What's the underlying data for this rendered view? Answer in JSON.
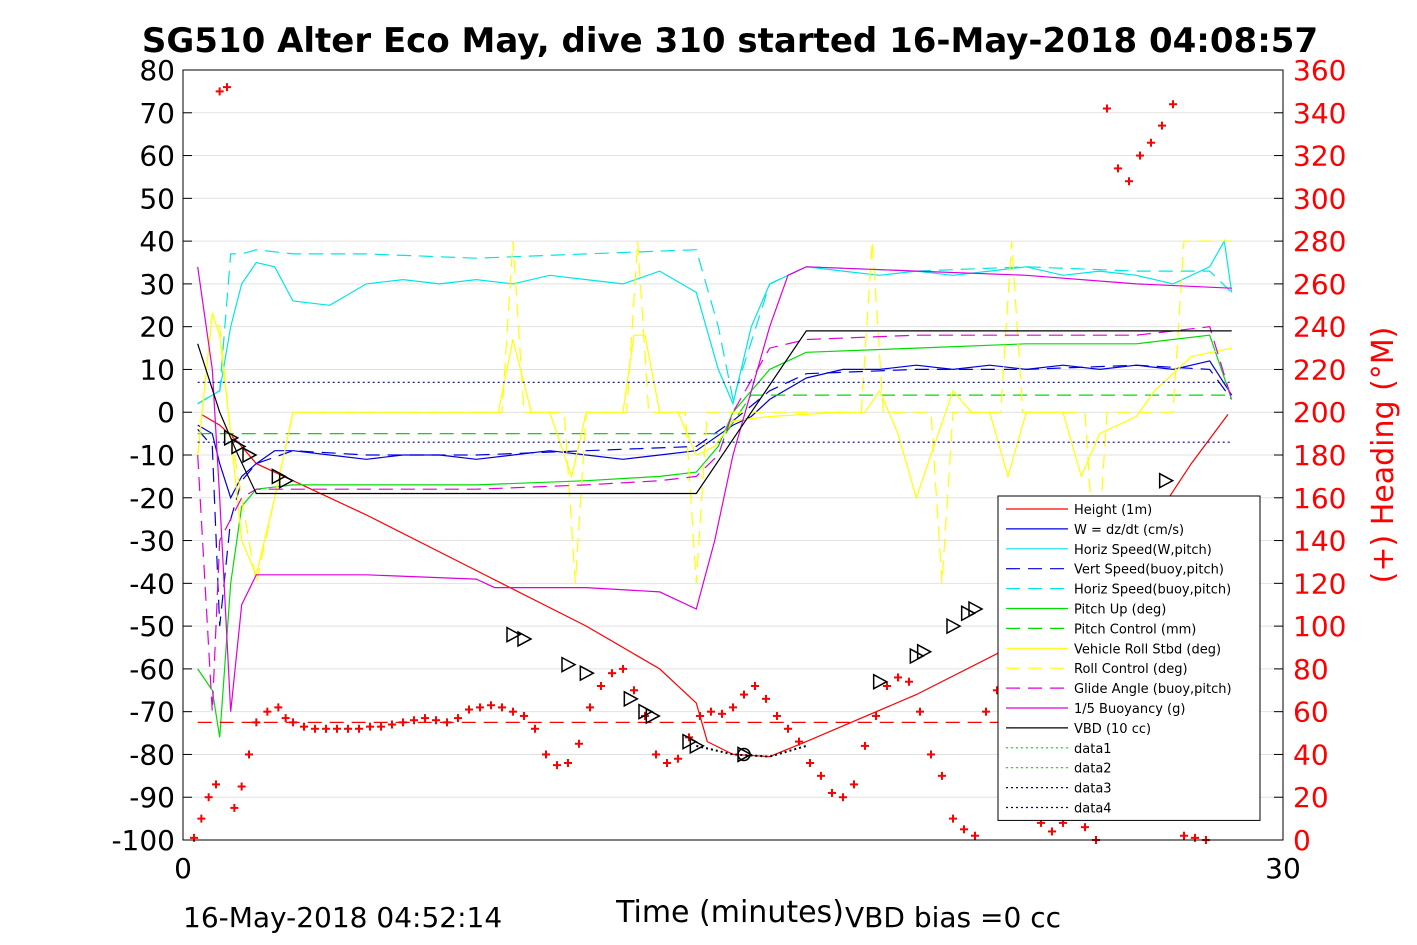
{
  "chart_data": {
    "type": "line",
    "title": "SG510 Alter Eco May, dive 310 started 16-May-2018 04:08:57",
    "xlabel": "Time (minutes)",
    "ylabel_right": "(+) Heading (°M)",
    "xlim": [
      0,
      30
    ],
    "ylim": [
      -100,
      80
    ],
    "y2lim": [
      0,
      360
    ],
    "x_ticks": [
      0,
      30
    ],
    "y_ticks": [
      80,
      70,
      60,
      50,
      40,
      30,
      20,
      10,
      0,
      -10,
      -20,
      -30,
      -40,
      -50,
      -60,
      -70,
      -80,
      -90,
      -100
    ],
    "y2_ticks": [
      360,
      340,
      320,
      300,
      280,
      260,
      240,
      220,
      200,
      180,
      160,
      140,
      120,
      100,
      80,
      60,
      40,
      20,
      0
    ],
    "grid": true,
    "legend_position": "lower-right",
    "footer_left": "16-May-2018 04:52:14",
    "footer_right": "VBD bias =0 cc",
    "colors": {
      "red": "#ff0000",
      "blue": "#0000dd",
      "cyan": "#00e6e6",
      "green": "#00dd00",
      "yellow": "#ffff00",
      "magenta": "#dd00dd",
      "black": "#000000",
      "navy": "#000080"
    },
    "legend": [
      {
        "label": "Height (1m)",
        "color": "#ff0000",
        "style": "solid"
      },
      {
        "label": "W = dz/dt (cm/s)",
        "color": "#0000dd",
        "style": "solid"
      },
      {
        "label": "Horiz Speed(W,pitch)",
        "color": "#00e6e6",
        "style": "solid"
      },
      {
        "label": "Vert Speed(buoy,pitch)",
        "color": "#0000dd",
        "style": "dashed"
      },
      {
        "label": "Horiz Speed(buoy,pitch)",
        "color": "#00e6e6",
        "style": "dashed"
      },
      {
        "label": "Pitch Up (deg)",
        "color": "#00dd00",
        "style": "solid"
      },
      {
        "label": "Pitch Control (mm)",
        "color": "#00dd00",
        "style": "dashed"
      },
      {
        "label": "Vehicle Roll Stbd (deg)",
        "color": "#ffff00",
        "style": "solid"
      },
      {
        "label": "Roll Control (deg)",
        "color": "#ffff00",
        "style": "dashed"
      },
      {
        "label": "Glide Angle (buoy,pitch)",
        "color": "#dd00dd",
        "style": "dashed"
      },
      {
        "label": "1/5 Buoyancy (g)",
        "color": "#dd00dd",
        "style": "solid"
      },
      {
        "label": "VBD (10 cc)",
        "color": "#000000",
        "style": "solid"
      },
      {
        "label": "data1",
        "color": "#00dd00",
        "style": "dotted"
      },
      {
        "label": "data2",
        "color": "#00dd00",
        "style": "dotted"
      },
      {
        "label": "data3",
        "color": "#000080",
        "style": "dotted"
      },
      {
        "label": "data4",
        "color": "#000080",
        "style": "dotted"
      }
    ],
    "series": [
      {
        "key": "height",
        "color": "#ff0000",
        "style": "solid",
        "x": [
          0.5,
          1.0,
          1.5,
          2.0,
          3.0,
          5.0,
          8.0,
          11.0,
          13.0,
          14.0,
          14.3,
          15.0,
          16.0,
          17.0,
          20.0,
          23.0,
          25.0,
          26.5,
          27.5,
          28.5
        ],
        "y": [
          -0.5,
          -3,
          -7,
          -12,
          -16,
          -24,
          -37,
          -50,
          -60,
          -68,
          -77,
          -80,
          -80.5,
          -77,
          -66,
          -53,
          -40,
          -25,
          -12,
          -0.5
        ]
      },
      {
        "key": "w",
        "color": "#0000dd",
        "style": "solid",
        "x": [
          0.4,
          0.8,
          1.0,
          1.3,
          1.6,
          2.0,
          2.5,
          3.0,
          4.0,
          5.0,
          6.0,
          7.0,
          8.0,
          9.0,
          10.0,
          11.0,
          12.0,
          13.0,
          14.0,
          15.0,
          15.5,
          16.0,
          17.0,
          18.0,
          19.0,
          20.0,
          21.0,
          22.0,
          23.0,
          24.0,
          25.0,
          26.0,
          27.0,
          28.0,
          28.6
        ],
        "y": [
          -3,
          -5,
          -12,
          -20,
          -15,
          -12,
          -9,
          -9,
          -10,
          -11,
          -10,
          -10,
          -11,
          -10,
          -9,
          -10,
          -11,
          -10,
          -9,
          -3,
          -1,
          3,
          8,
          10,
          10,
          11,
          10,
          11,
          10,
          11,
          10,
          11,
          10,
          12,
          4
        ]
      },
      {
        "key": "horiz_w",
        "color": "#00e6e6",
        "style": "solid",
        "x": [
          0.4,
          1.0,
          1.3,
          1.6,
          2.0,
          2.5,
          3.0,
          4.0,
          5.0,
          6.0,
          7.0,
          8.0,
          9.0,
          10.0,
          11.0,
          12.0,
          13.0,
          14.0,
          14.6,
          15.0,
          15.5,
          16.0,
          17.0,
          18.0,
          19.0,
          20.0,
          21.0,
          22.0,
          23.0,
          24.0,
          25.0,
          26.0,
          27.0,
          28.0,
          28.4,
          28.6
        ],
        "y": [
          2,
          5,
          20,
          30,
          35,
          34,
          26,
          25,
          30,
          31,
          30,
          31,
          30,
          32,
          31,
          30,
          33,
          28,
          10,
          2,
          20,
          30,
          34,
          33,
          32,
          33,
          32,
          33,
          34,
          32,
          33,
          32,
          30,
          34,
          40,
          28
        ]
      },
      {
        "key": "vert_buoy",
        "color": "#0000dd",
        "style": "dashed",
        "x": [
          0.4,
          0.8,
          1.0,
          1.3,
          1.6,
          2.0,
          3.0,
          5.0,
          8.0,
          11.0,
          14.0,
          15.0,
          16.0,
          17.0,
          20.0,
          23.0,
          26.0,
          28.0,
          28.6
        ],
        "y": [
          -4,
          -8,
          -50,
          -25,
          -16,
          -12,
          -9,
          -10,
          -10,
          -9,
          -8,
          -2,
          5,
          9,
          10,
          10,
          11,
          10,
          3
        ]
      },
      {
        "key": "horiz_buoy",
        "color": "#00e6e6",
        "style": "dashed",
        "x": [
          0.4,
          1.0,
          1.3,
          1.6,
          2.0,
          3.0,
          5.0,
          8.0,
          11.0,
          14.0,
          14.6,
          15.0,
          16.0,
          17.0,
          20.0,
          23.0,
          26.0,
          28.0,
          28.6
        ],
        "y": [
          2,
          5,
          37,
          37,
          38,
          37,
          37,
          36,
          37,
          38,
          20,
          3,
          30,
          34,
          33,
          34,
          33,
          33,
          28
        ]
      },
      {
        "key": "pitch",
        "color": "#00dd00",
        "style": "solid",
        "x": [
          0.4,
          0.8,
          1.0,
          1.3,
          1.6,
          2.0,
          3.0,
          5.0,
          8.0,
          11.0,
          13.0,
          14.0,
          14.6,
          15.0,
          16.0,
          17.0,
          20.0,
          23.0,
          26.0,
          28.0,
          28.6
        ],
        "y": [
          -60,
          -65,
          -76,
          -40,
          -22,
          -18,
          -17,
          -17,
          -17,
          -16,
          -15,
          -14,
          -8,
          0,
          10,
          14,
          15,
          16,
          16,
          18,
          3
        ]
      },
      {
        "key": "pitch_control",
        "color": "#00dd00",
        "style": "dashed",
        "x": [
          0.4,
          1.5,
          5.0,
          10.0,
          14.0,
          14.8,
          15.5,
          20.0,
          25.0,
          28.6
        ],
        "y": [
          -5,
          -5,
          -5,
          -5,
          -5,
          -5,
          4,
          4,
          4,
          4
        ]
      },
      {
        "key": "roll",
        "color": "#ffff00",
        "style": "solid",
        "x": [
          0.4,
          0.8,
          1.0,
          1.3,
          1.6,
          2.0,
          2.5,
          3.0,
          4.0,
          8.0,
          8.6,
          9.0,
          9.5,
          10.0,
          10.6,
          11.0,
          11.5,
          12.0,
          12.3,
          12.6,
          13.0,
          13.5,
          14.0,
          14.5,
          15.0,
          16.0,
          18.0,
          18.6,
          19.0,
          19.5,
          20.0,
          21.0,
          21.5,
          22.0,
          22.5,
          23.0,
          24.0,
          24.5,
          25.0,
          26.0,
          26.5,
          27.5,
          28.6
        ],
        "y": [
          -10,
          23,
          18,
          -5,
          -30,
          -38,
          -20,
          0,
          0,
          0,
          0,
          17,
          0,
          0,
          -15,
          0,
          0,
          0,
          18,
          18,
          0,
          0,
          -10,
          -8,
          -2,
          -1,
          0,
          0,
          5,
          -5,
          -20,
          5,
          0,
          0,
          -15,
          0,
          0,
          -15,
          -5,
          -1,
          5,
          13,
          15
        ]
      },
      {
        "key": "roll_control",
        "color": "#ffff00",
        "style": "dashed",
        "x": [
          0.4,
          0.8,
          1.0,
          1.3,
          2.0,
          3.0,
          8.0,
          8.7,
          9.0,
          9.3,
          10.4,
          10.7,
          11.0,
          12.1,
          12.4,
          12.7,
          13.7,
          14.0,
          14.3,
          15.0,
          18.5,
          18.8,
          19.1,
          20.4,
          20.7,
          21.0,
          22.3,
          22.6,
          22.9,
          24.6,
          24.9,
          25.2,
          27.0,
          27.3,
          27.6,
          28.6
        ],
        "y": [
          -10,
          23,
          20,
          -5,
          -40,
          0,
          0,
          0,
          40,
          0,
          0,
          -40,
          0,
          0,
          40,
          0,
          0,
          -40,
          0,
          0,
          0,
          40,
          0,
          0,
          -40,
          0,
          0,
          40,
          0,
          0,
          -40,
          0,
          0,
          40,
          40,
          40
        ]
      },
      {
        "key": "glide",
        "color": "#dd00dd",
        "style": "dashed",
        "x": [
          0.4,
          0.8,
          1.0,
          1.3,
          1.6,
          2.0,
          3.0,
          5.0,
          8.0,
          11.0,
          13.0,
          14.0,
          14.6,
          15.0,
          16.0,
          17.0,
          20.0,
          23.0,
          26.0,
          28.0,
          28.6
        ],
        "y": [
          -10,
          -70,
          -30,
          -25,
          -20,
          -18,
          -18,
          -18,
          -18,
          -17,
          -16,
          -15,
          -10,
          0,
          15,
          17,
          18,
          18,
          18,
          20,
          3
        ]
      },
      {
        "key": "buoyancy",
        "color": "#dd00dd",
        "style": "solid",
        "x": [
          0.4,
          0.8,
          1.0,
          1.3,
          1.6,
          2.0,
          3.0,
          5.0,
          8.0,
          8.5,
          11.0,
          13.0,
          13.5,
          14.0,
          14.5,
          15.0,
          16.0,
          16.5,
          17.0,
          20.0,
          23.0,
          26.0,
          28.6
        ],
        "y": [
          34,
          10,
          -20,
          -70,
          -45,
          -38,
          -38,
          -38,
          -39,
          -41,
          -41,
          -42,
          -44,
          -46,
          -30,
          -10,
          20,
          32,
          34,
          33,
          32,
          30,
          29
        ]
      },
      {
        "key": "vbd",
        "color": "#000000",
        "style": "solid",
        "x": [
          0.4,
          1.0,
          1.5,
          2.0,
          14.0,
          15.5,
          17.0,
          28.6
        ],
        "y": [
          16,
          0,
          -10,
          -19,
          -19,
          0,
          19,
          19
        ]
      },
      {
        "key": "data3",
        "color": "#000080",
        "style": "dotted",
        "x": [
          0.4,
          28.6
        ],
        "y": [
          7,
          7
        ]
      },
      {
        "key": "data4",
        "color": "#000080",
        "style": "dotted",
        "x": [
          0.4,
          28.6
        ],
        "y": [
          -7,
          -7
        ]
      },
      {
        "key": "pitch_ref",
        "color": "#ff0000",
        "style": "dashed",
        "x": [
          0.4,
          28.6
        ],
        "y": [
          -72.5,
          -72.5
        ]
      },
      {
        "key": "bottom_dots",
        "color": "#000000",
        "style": "dotted",
        "x": [
          14.0,
          15.0,
          16.0,
          17.0
        ],
        "y": [
          -78,
          -80,
          -80.5,
          -78
        ]
      }
    ],
    "heading_points": {
      "color": "#ff0000",
      "x": [
        0.3,
        0.5,
        0.7,
        0.9,
        1.0,
        1.2,
        1.4,
        1.6,
        1.8,
        2.0,
        2.3,
        2.6,
        2.8,
        3.0,
        3.3,
        3.6,
        3.9,
        4.2,
        4.5,
        4.8,
        5.1,
        5.4,
        5.7,
        6.0,
        6.3,
        6.6,
        6.9,
        7.2,
        7.5,
        7.8,
        8.1,
        8.4,
        8.7,
        9.0,
        9.3,
        9.6,
        9.9,
        10.2,
        10.5,
        10.8,
        11.1,
        11.4,
        11.7,
        12.0,
        12.3,
        12.6,
        12.9,
        13.2,
        13.5,
        13.8,
        14.1,
        14.4,
        14.7,
        15.0,
        15.3,
        15.6,
        15.9,
        16.2,
        16.5,
        16.8,
        17.1,
        17.4,
        17.7,
        18.0,
        18.3,
        18.6,
        18.9,
        19.2,
        19.5,
        19.8,
        20.1,
        20.4,
        20.7,
        21.0,
        21.3,
        21.6,
        21.9,
        22.2,
        22.5,
        22.8,
        23.1,
        23.4,
        23.7,
        24.0,
        24.3,
        24.6,
        24.9,
        25.2,
        25.5,
        25.8,
        26.1,
        26.4,
        26.7,
        27.0,
        27.3,
        27.6,
        27.9
      ],
      "y": [
        1,
        10,
        20,
        26,
        350,
        352,
        15,
        25,
        40,
        55,
        60,
        62,
        57,
        55,
        53,
        52,
        52,
        52,
        52,
        52,
        53,
        53,
        54,
        55,
        56,
        57,
        56,
        55,
        57,
        61,
        62,
        63,
        62,
        60,
        58,
        52,
        40,
        35,
        36,
        45,
        62,
        72,
        78,
        80,
        70,
        58,
        40,
        36,
        38,
        48,
        58,
        60,
        59,
        62,
        68,
        72,
        66,
        58,
        52,
        46,
        36,
        30,
        22,
        20,
        26,
        44,
        58,
        72,
        76,
        74,
        60,
        40,
        30,
        10,
        5,
        2,
        60,
        70,
        50,
        30,
        20,
        8,
        4,
        8,
        12,
        6,
        0,
        342,
        314,
        308,
        320,
        326,
        334,
        344,
        2,
        1,
        0
      ]
    },
    "triangle_markers": {
      "x": [
        1.3,
        1.5,
        1.8,
        2.6,
        2.8,
        9.0,
        9.3,
        10.5,
        11.0,
        12.2,
        12.6,
        12.8,
        13.8,
        14.0,
        15.3,
        19.0,
        20.0,
        20.2,
        21.0,
        21.4,
        21.6,
        22.5,
        26.8
      ],
      "y": [
        -6,
        -8,
        -10,
        -15,
        -16,
        -52,
        -53,
        -59,
        -61,
        -67,
        -70,
        -71,
        -77,
        -78,
        -80,
        -63,
        -57,
        -56,
        -50,
        -47,
        -46,
        -41,
        -16
      ]
    },
    "ring_markers": {
      "x": [
        15.3
      ],
      "y": [
        -80
      ]
    }
  }
}
